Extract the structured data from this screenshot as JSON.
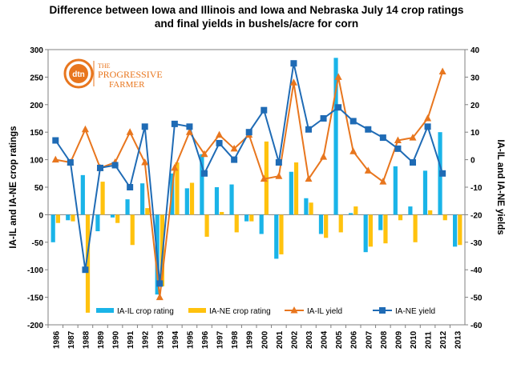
{
  "title_lines": [
    "Difference between Iowa and Illinois and Iowa and Nebraska July 14 crop ratings",
    "and final yields in bushels/acre for corn"
  ],
  "logo": {
    "badge": "dtn",
    "text": "THE PROGRESSIVE FARMER"
  },
  "colors": {
    "ia_il_bar": "#1ab4e8",
    "ia_ne_bar": "#ffc20e",
    "ia_il_line": "#e8761e",
    "ia_ne_line": "#1f6bb5",
    "logo": "#e8761e"
  },
  "chart_data": {
    "type": "bar+line",
    "categories": [
      "1986",
      "1987",
      "1988",
      "1989",
      "1990",
      "1991",
      "1992",
      "1993",
      "1994",
      "1995",
      "1996",
      "1997",
      "1998",
      "1999",
      "2000",
      "2001",
      "2002",
      "2003",
      "2004",
      "2005",
      "2006",
      "2007",
      "2008",
      "2009",
      "2010",
      "2011",
      "2012",
      "2013"
    ],
    "left_axis": {
      "label": "IA-IL and IA-NE crop ratings",
      "ylim": [
        -200,
        300
      ],
      "ticks": [
        -200,
        -150,
        -100,
        -50,
        0,
        50,
        100,
        150,
        200,
        250,
        300
      ]
    },
    "right_axis": {
      "label": "IA-IL and IA-NE yields",
      "ylim": [
        -60,
        40
      ],
      "ticks": [
        -60,
        -50,
        -40,
        -30,
        -20,
        -10,
        0,
        10,
        20,
        30,
        40
      ]
    },
    "bar_series": [
      {
        "name": "IA-IL crop rating",
        "values": [
          -50,
          -10,
          72,
          -30,
          -5,
          28,
          57,
          -145,
          75,
          48,
          110,
          50,
          55,
          -12,
          -35,
          -80,
          78,
          30,
          -35,
          285,
          3,
          -68,
          -28,
          88,
          15,
          80,
          150,
          -58
        ]
      },
      {
        "name": "IA-NE crop rating",
        "values": [
          -15,
          -12,
          -178,
          60,
          -15,
          -55,
          12,
          -130,
          95,
          58,
          -40,
          5,
          -32,
          -12,
          133,
          -72,
          95,
          22,
          -42,
          -32,
          15,
          -58,
          -52,
          -10,
          -50,
          8,
          -10,
          -55
        ]
      }
    ],
    "line_series": [
      {
        "name": "IA-IL yield",
        "values": [
          0,
          -1,
          11,
          -3,
          -1,
          10,
          -1,
          -50,
          -3,
          10,
          2,
          9,
          4,
          9,
          -7,
          -6,
          28,
          -7,
          1,
          30,
          3,
          -4,
          -8,
          7,
          8,
          15,
          32,
          null
        ]
      },
      {
        "name": "IA-NE yield",
        "values": [
          7,
          -1,
          -40,
          -3,
          -2,
          -10,
          12,
          -45,
          13,
          12,
          -5,
          6,
          0,
          10,
          18,
          -1,
          35,
          11,
          15,
          19,
          14,
          11,
          8,
          4,
          -1,
          12,
          -5,
          null
        ]
      }
    ],
    "legend_position": "bottom"
  }
}
